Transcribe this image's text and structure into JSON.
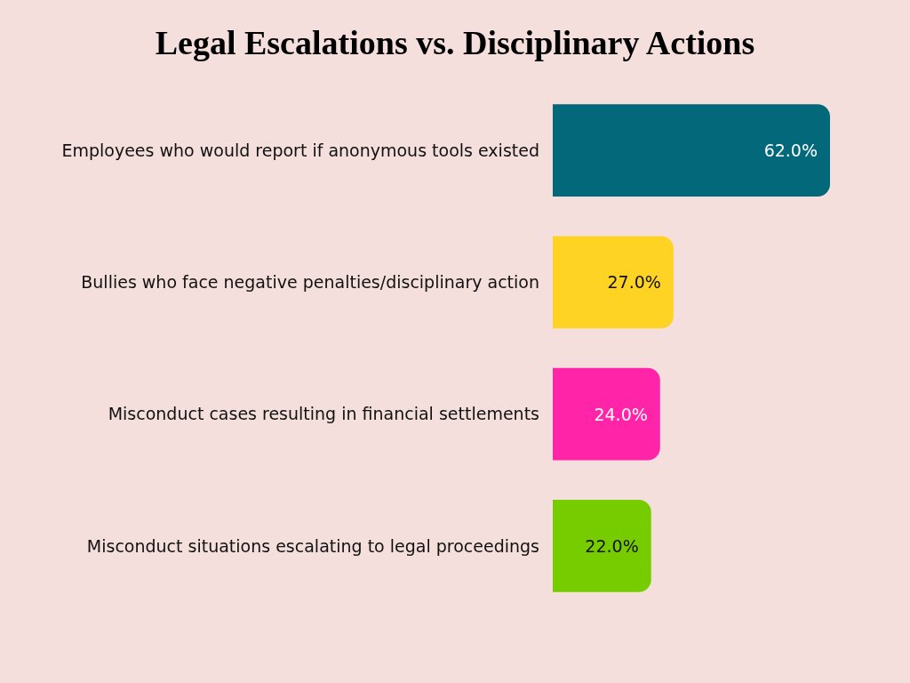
{
  "chart_data": {
    "type": "bar",
    "orientation": "horizontal",
    "title": "Legal Escalations vs. Disciplinary Actions",
    "categories": [
      "Employees who would report if anonymous tools existed",
      "Bullies who face negative penalties/disciplinary action",
      "Misconduct cases resulting in financial settlements",
      "Misconduct situations escalating to legal proceedings"
    ],
    "values": [
      62,
      27,
      24,
      22
    ],
    "value_labels": [
      "62.0%",
      "27.0%",
      "24.0%",
      "22.0%"
    ],
    "colors": [
      "#02687a",
      "#ffd324",
      "#ff24a8",
      "#77cc00"
    ],
    "grid": false,
    "legend": false
  }
}
